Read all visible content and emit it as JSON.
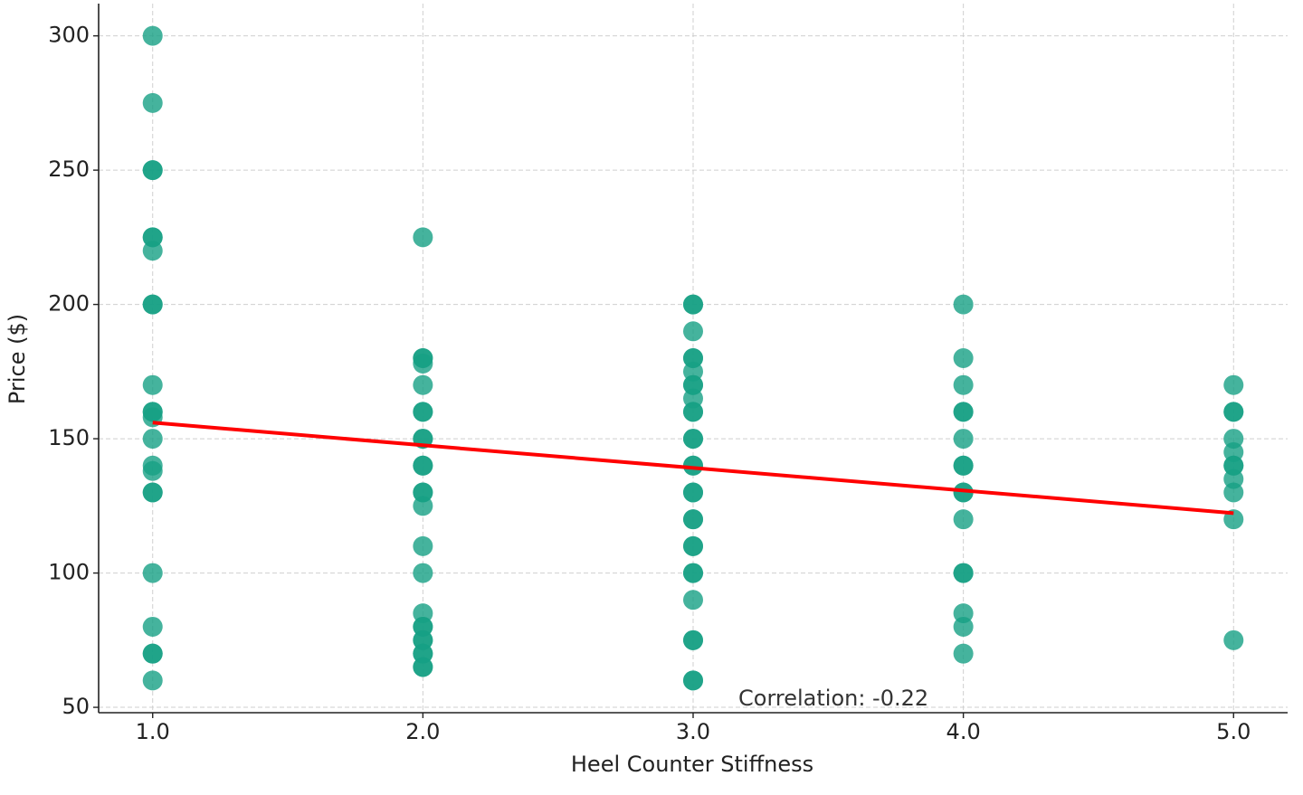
{
  "chart_data": {
    "type": "scatter",
    "x_label": "Heel Counter Stiffness",
    "y_label": "Price ($)",
    "annotation": "Correlation: -0.22",
    "color": "#16a085",
    "trend_color": "#ff0000",
    "grid": true,
    "xlim": [
      0.8,
      5.2
    ],
    "ylim": [
      48,
      312
    ],
    "xticks": [
      {
        "value": 1,
        "label": "1.0"
      },
      {
        "value": 2,
        "label": "2.0"
      },
      {
        "value": 3,
        "label": "3.0"
      },
      {
        "value": 4,
        "label": "4.0"
      },
      {
        "value": 5,
        "label": "5.0"
      }
    ],
    "yticks": [
      50,
      100,
      150,
      200,
      250,
      300
    ],
    "x": [
      1,
      1,
      1,
      1,
      1,
      1,
      1,
      1,
      1,
      1,
      1,
      1,
      1,
      1,
      1,
      1,
      1,
      1,
      1,
      1,
      1,
      1,
      1,
      2,
      2,
      2,
      2,
      2,
      2,
      2,
      2,
      2,
      2,
      2,
      2,
      2,
      2,
      2,
      2,
      2,
      2,
      2,
      2,
      2,
      2,
      2,
      2,
      2,
      3,
      3,
      3,
      3,
      3,
      3,
      3,
      3,
      3,
      3,
      3,
      3,
      3,
      3,
      3,
      3,
      3,
      3,
      3,
      3,
      3,
      3,
      3,
      3,
      3,
      3,
      3,
      3,
      4,
      4,
      4,
      4,
      4,
      4,
      4,
      4,
      4,
      4,
      4,
      4,
      4,
      4,
      4,
      4,
      5,
      5,
      5,
      5,
      5,
      5,
      5,
      5,
      5,
      5,
      5
    ],
    "y": [
      300,
      275,
      250,
      250,
      225,
      225,
      220,
      200,
      200,
      170,
      160,
      160,
      158,
      150,
      140,
      138,
      130,
      130,
      100,
      80,
      70,
      70,
      60,
      225,
      180,
      180,
      178,
      170,
      160,
      160,
      150,
      150,
      140,
      140,
      130,
      130,
      125,
      110,
      100,
      85,
      80,
      80,
      75,
      75,
      70,
      70,
      65,
      65,
      200,
      200,
      190,
      180,
      180,
      175,
      170,
      170,
      165,
      160,
      160,
      150,
      150,
      140,
      140,
      130,
      130,
      120,
      120,
      110,
      110,
      100,
      100,
      90,
      75,
      75,
      60,
      60,
      200,
      180,
      170,
      160,
      160,
      150,
      140,
      140,
      130,
      130,
      120,
      100,
      100,
      85,
      80,
      70,
      170,
      160,
      160,
      150,
      145,
      140,
      140,
      135,
      130,
      120,
      75
    ],
    "trendline": {
      "x": [
        1,
        5
      ],
      "y": [
        156,
        122.3
      ]
    }
  }
}
